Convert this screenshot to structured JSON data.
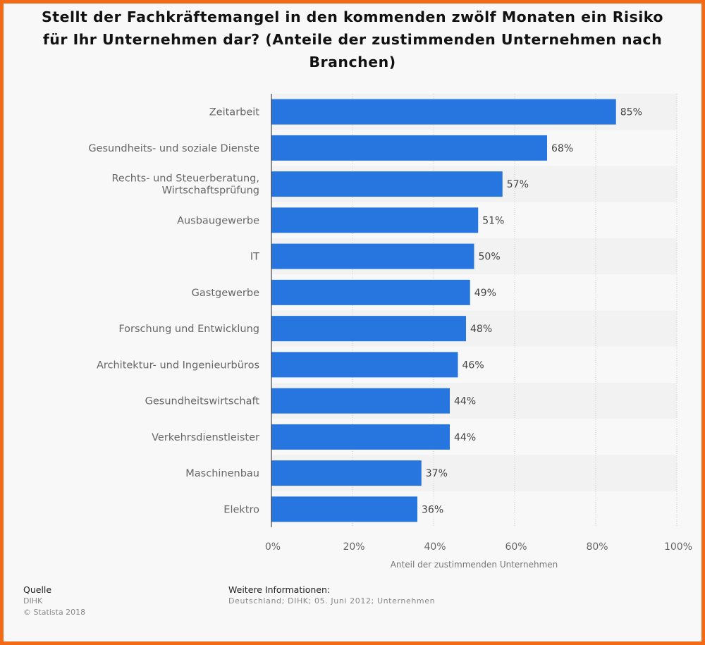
{
  "chart_data": {
    "type": "bar",
    "orientation": "horizontal",
    "title": "Stellt der Fachkräftemangel in den kommenden zwölf Monaten ein Risiko für Ihr Unternehmen dar? (Anteile der zustimmenden Unternehmen nach Branchen)",
    "categories": [
      [
        "Zeitarbeit"
      ],
      [
        "Gesundheits- und soziale Dienste"
      ],
      [
        "Rechts- und Steuerberatung,",
        "Wirtschaftsprüfung"
      ],
      [
        "Ausbaugewerbe"
      ],
      [
        "IT"
      ],
      [
        "Gastgewerbe"
      ],
      [
        "Forschung und Entwicklung"
      ],
      [
        "Architektur- und Ingenieurbüros"
      ],
      [
        "Gesundheitswirtschaft"
      ],
      [
        "Verkehrsdienstleister"
      ],
      [
        "Maschinenbau"
      ],
      [
        "Elektro"
      ]
    ],
    "values": [
      85,
      68,
      57,
      51,
      50,
      49,
      48,
      46,
      44,
      44,
      37,
      36
    ],
    "value_labels": [
      "85%",
      "68%",
      "57%",
      "51%",
      "50%",
      "49%",
      "48%",
      "46%",
      "44%",
      "44%",
      "37%",
      "36%"
    ],
    "xlim": [
      0,
      100
    ],
    "xticks": [
      0,
      20,
      40,
      60,
      80,
      100
    ],
    "xtick_labels": [
      "0%",
      "20%",
      "40%",
      "60%",
      "80%",
      "100%"
    ],
    "xlabel": "Anteil der zustimmenden Unternehmen",
    "ylabel": "",
    "grid": "vertical dotted",
    "bar_color": "#2776e0"
  },
  "footer": {
    "source_heading": "Quelle",
    "source_name": "DIHK",
    "copyright": "© Statista 2018",
    "info_heading": "Weitere Informationen:",
    "info_text": "Deutschland; DIHK; 05. Juni 2012; Unternehmen"
  },
  "colors": {
    "border": "#f26a16",
    "background": "#f8f8f8",
    "bar": "#2776e0"
  }
}
